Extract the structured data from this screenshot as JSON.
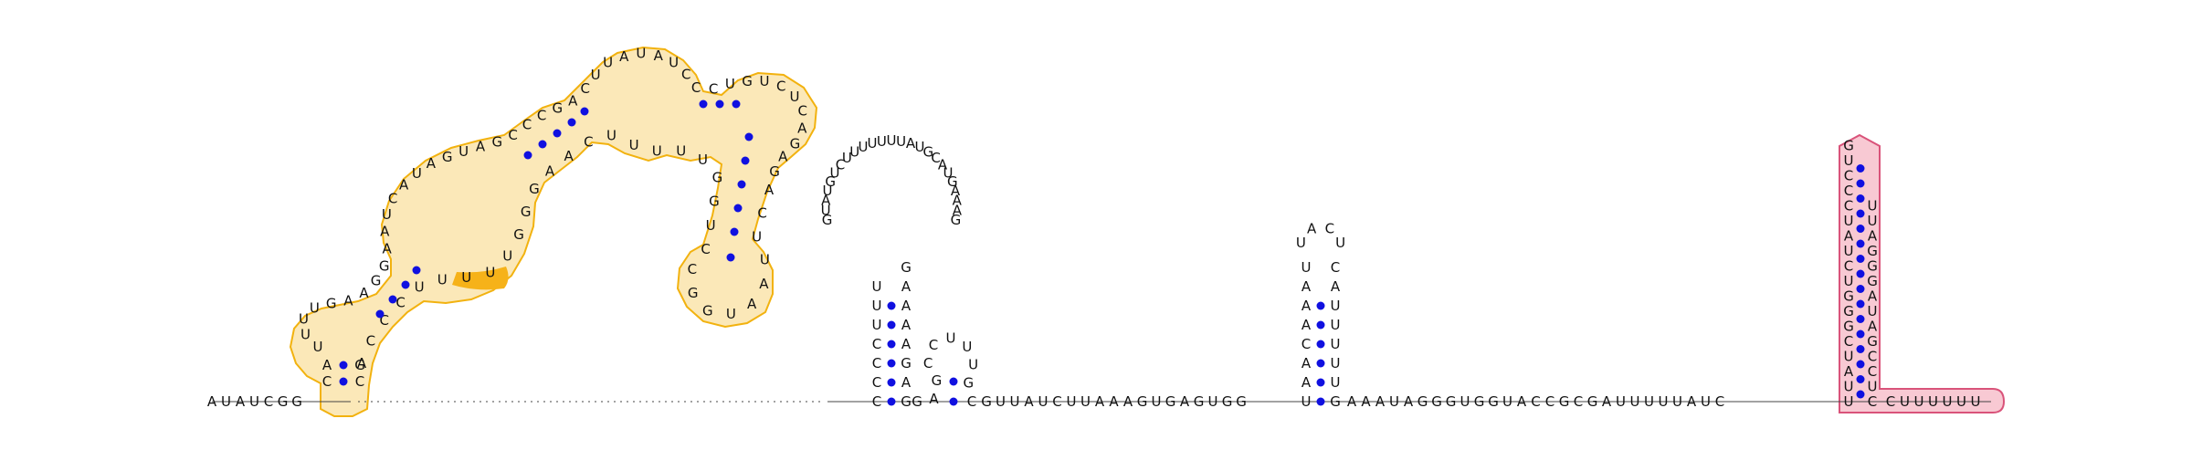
{
  "diagram": {
    "pair_color": "#1010e0",
    "highlight_colors": {
      "structure_a": "#f2b20f",
      "structure_b": "#d9537a"
    },
    "left_tail": "AUAUCGG",
    "stem_a_5prime": "CA",
    "stem_a_3prime": "CG",
    "region_a_left_strand": "UUUUGAAGGAAUCAUAGUAGCCCGACUUAUAUCCCUGUCUCAGAG",
    "region_a_right_strand": "ACUUAAUGGCCUGGUUUUUCAAGGGUUUUUCCCA",
    "loop_a_highlight": "AACA",
    "linker_dots": 22,
    "hairpin_1_stem_left": "UUUCCCC",
    "hairpin_1_loop": "GUAUGUCUUUUUUUAUGCAUGAAAG",
    "hairpin_1_stem_right": "GAGAAAAG",
    "hairpin_2": "GAGCCUUUGC",
    "spacer_1": "GUUAUCUUAAAGUGAGUGG",
    "hairpin_3_stem_left": "UAAACAAU",
    "hairpin_3_loop": "UACU",
    "hairpin_3_stem_right": "GUUUUUAC",
    "spacer_2": "AAAUAGGGUGGUACCGCGAUUUUUAUC",
    "hairpin_4_left": "GUCCCUAUCUGGGCUAUU",
    "hairpin_4_right": "CUCCGAUAGGGAUU",
    "right_tail": "CUUUUUU"
  }
}
